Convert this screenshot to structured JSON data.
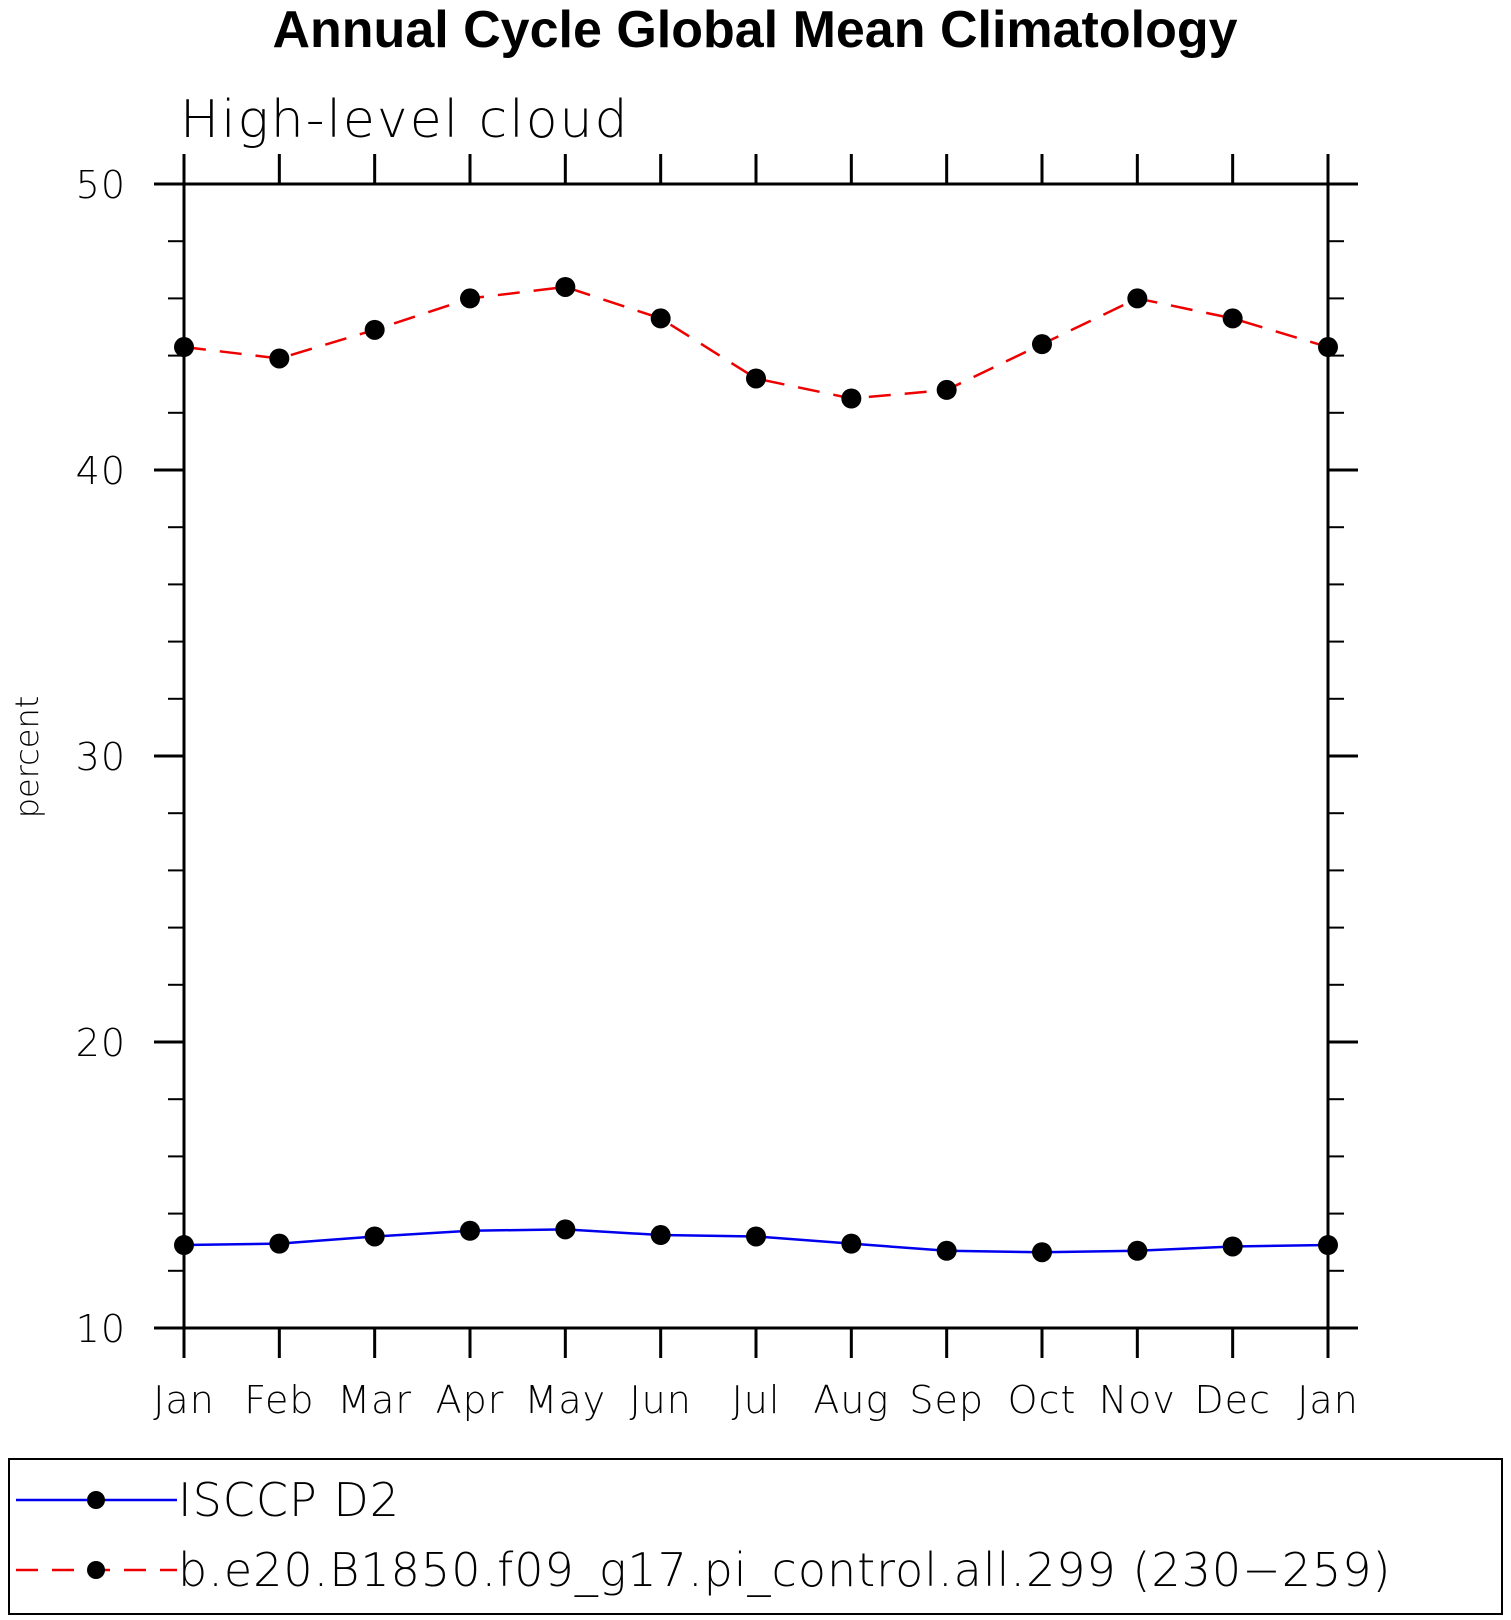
{
  "chart_data": {
    "type": "line",
    "title": "Annual Cycle Global Mean Climatology",
    "subtitle": "High-level cloud",
    "xlabel": "",
    "ylabel": "percent",
    "categories": [
      "Jan",
      "Feb",
      "Mar",
      "Apr",
      "May",
      "Jun",
      "Jul",
      "Aug",
      "Sep",
      "Oct",
      "Nov",
      "Dec",
      "Jan"
    ],
    "ylim": [
      10,
      50
    ],
    "yticks": [
      10,
      20,
      30,
      40,
      50
    ],
    "y_minor_step": 2,
    "grid": false,
    "legend_position": "bottom",
    "series": [
      {
        "name": "ISCCP D2",
        "values": [
          12.9,
          12.95,
          13.2,
          13.4,
          13.45,
          13.25,
          13.2,
          12.95,
          12.7,
          12.65,
          12.7,
          12.85,
          12.9
        ],
        "color": "#0000ee",
        "dash": "solid"
      },
      {
        "name": "b.e20.B1850.f09_g17.pi_control.all.299 (230−259)",
        "values": [
          44.3,
          43.9,
          44.9,
          46.0,
          46.4,
          45.3,
          43.2,
          42.5,
          42.8,
          44.4,
          46.0,
          45.3,
          44.3
        ],
        "color": "#ee0000",
        "dash": "dashed"
      }
    ]
  }
}
